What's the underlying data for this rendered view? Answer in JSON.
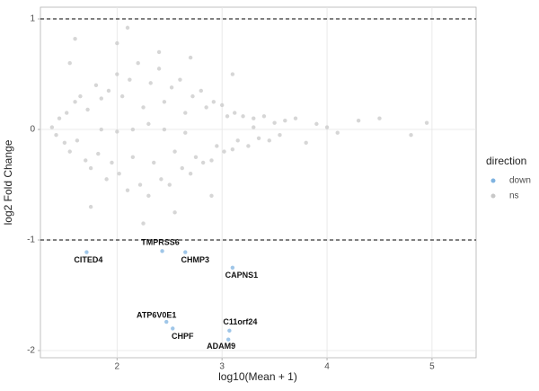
{
  "chart_data": {
    "type": "scatter",
    "xlabel": "log10(Mean + 1)",
    "ylabel": "log2 Fold Change",
    "xlim": [
      1.27,
      5.42
    ],
    "ylim": [
      -2.065,
      1.106
    ],
    "xticks": [
      2,
      3,
      4,
      5
    ],
    "yticks": [
      -2,
      -1,
      0,
      1
    ],
    "grid": true,
    "reference_lines": [
      1,
      -1
    ],
    "legend_title": "direction",
    "legend": "right",
    "series": [
      {
        "name": "down",
        "color": "#7fb3e0",
        "labels": [
          "CITED4",
          "TMPRSS6",
          "CHMP3",
          "CAPNS1",
          "ATP6V0E1",
          "CHPF",
          "C11orf24",
          "ADAM9"
        ],
        "x": [
          1.71,
          2.43,
          2.65,
          3.1,
          2.47,
          2.53,
          3.07,
          3.06
        ],
        "y": [
          -1.11,
          -1.1,
          -1.11,
          -1.25,
          -1.74,
          -1.8,
          -1.82,
          -1.9
        ]
      },
      {
        "name": "ns",
        "color": "#c8c8c8",
        "x": [
          1.38,
          1.42,
          1.45,
          1.5,
          1.52,
          1.55,
          1.6,
          1.62,
          1.65,
          1.7,
          1.72,
          1.75,
          1.8,
          1.82,
          1.85,
          1.9,
          1.92,
          1.95,
          2.0,
          2.02,
          2.05,
          2.1,
          2.12,
          2.15,
          2.2,
          2.22,
          2.25,
          2.3,
          2.32,
          2.35,
          2.4,
          2.42,
          2.45,
          2.5,
          2.52,
          2.55,
          2.6,
          2.62,
          2.65,
          2.7,
          2.72,
          2.75,
          2.8,
          2.82,
          2.85,
          2.9,
          2.92,
          2.95,
          3.0,
          3.02,
          3.05,
          3.1,
          3.12,
          3.15,
          3.2,
          3.25,
          3.3,
          3.35,
          3.4,
          3.45,
          3.5,
          3.55,
          3.6,
          3.7,
          3.8,
          3.9,
          4.0,
          4.1,
          4.3,
          4.5,
          4.8,
          4.95,
          1.6,
          1.75,
          2.0,
          2.1,
          2.25,
          2.4,
          2.55,
          2.7,
          2.9,
          3.1,
          1.85,
          2.3,
          2.65,
          2.45,
          3.3,
          2.0,
          1.55,
          2.15
        ],
        "y": [
          0.02,
          -0.05,
          0.1,
          -0.12,
          0.15,
          -0.2,
          0.25,
          -0.1,
          0.3,
          -0.28,
          0.18,
          -0.35,
          0.4,
          -0.22,
          0.28,
          -0.45,
          0.35,
          -0.3,
          0.5,
          -0.4,
          0.3,
          -0.55,
          0.45,
          -0.25,
          0.6,
          -0.5,
          0.2,
          -0.6,
          0.42,
          -0.3,
          0.55,
          -0.45,
          0.25,
          -0.5,
          0.38,
          -0.2,
          0.45,
          -0.35,
          0.15,
          -0.4,
          0.3,
          -0.25,
          0.35,
          -0.3,
          0.2,
          -0.28,
          0.25,
          -0.15,
          0.22,
          -0.2,
          0.12,
          -0.18,
          0.15,
          -0.1,
          0.12,
          -0.15,
          0.1,
          -0.08,
          0.12,
          -0.1,
          0.06,
          -0.05,
          0.08,
          0.1,
          -0.12,
          0.05,
          0.02,
          -0.03,
          0.08,
          0.1,
          -0.05,
          0.06,
          0.82,
          -0.7,
          0.78,
          0.92,
          -0.85,
          0.7,
          -0.75,
          0.65,
          -0.6,
          0.5,
          0.0,
          0.05,
          -0.03,
          0.0,
          0.02,
          -0.02,
          0.6,
          0.0
        ]
      }
    ]
  }
}
